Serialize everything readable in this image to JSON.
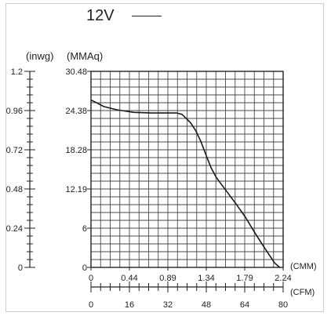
{
  "legend": {
    "label": "12V"
  },
  "units": {
    "inwg": "(inwg)",
    "mmaq": "(MMAq)",
    "cmm": "(CMM)",
    "cfm": "(CFM)"
  },
  "chart_data": {
    "type": "line",
    "title": "",
    "series": [
      {
        "name": "12V",
        "x": [
          0,
          0.05,
          0.15,
          0.3,
          0.5,
          0.7,
          0.9,
          1.0,
          1.06,
          1.1,
          1.16,
          1.22,
          1.28,
          1.34,
          1.4,
          1.46,
          1.52,
          1.6,
          1.7,
          1.8,
          1.9,
          2.0,
          2.08,
          2.14,
          2.2
        ],
        "y": [
          26.0,
          25.7,
          25.0,
          24.5,
          24.1,
          24.0,
          24.0,
          24.0,
          23.8,
          23.3,
          22.5,
          21.3,
          19.6,
          17.5,
          15.5,
          14.0,
          12.9,
          11.5,
          9.7,
          7.8,
          5.6,
          3.5,
          1.9,
          0.7,
          0.0
        ]
      }
    ],
    "x_axis_primary": {
      "label": "(CMM)",
      "ticks": [
        "0",
        "0.44",
        "0.89",
        "1.34",
        "1.79",
        "2.24"
      ],
      "range": [
        0,
        2.24
      ]
    },
    "x_axis_secondary": {
      "label": "(CFM)",
      "ticks": [
        "0",
        "16",
        "32",
        "48",
        "64",
        "80"
      ],
      "range": [
        0,
        80
      ]
    },
    "y_axis_primary": {
      "label": "(MMAq)",
      "ticks": [
        "0",
        "6",
        "12.19",
        "18.28",
        "24.38",
        "30.48"
      ],
      "range": [
        0,
        30.48
      ]
    },
    "y_axis_secondary": {
      "label": "(inwg)",
      "ticks": [
        "0",
        "0.24",
        "0.48",
        "0.72",
        "0.96",
        "1.2"
      ],
      "range": [
        0,
        1.2
      ]
    },
    "grid": true
  }
}
